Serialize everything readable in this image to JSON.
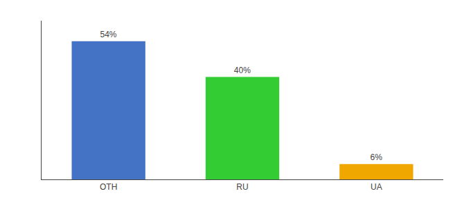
{
  "chart_data": {
    "type": "bar",
    "categories": [
      "OTH",
      "RU",
      "UA"
    ],
    "values": [
      54,
      40,
      6
    ],
    "value_labels": [
      "54%",
      "40%",
      "6%"
    ],
    "colors": [
      "#4472c4",
      "#33cc33",
      "#f0a800"
    ],
    "ylim": [
      0,
      62
    ],
    "data_labels": true,
    "tick_labels": "x",
    "grid": false
  }
}
